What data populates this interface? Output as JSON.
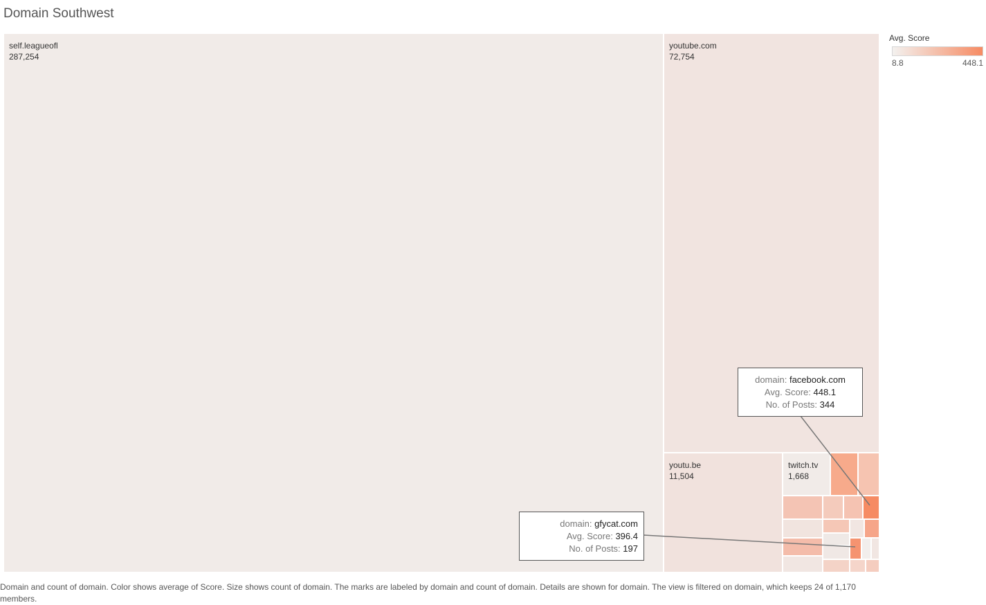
{
  "title": "Domain Southwest",
  "legend": {
    "title": "Avg. Score",
    "min_label": "8.8",
    "max_label": "448.1",
    "color_low": "#f3f1ef",
    "color_high": "#f68b63"
  },
  "callouts": {
    "facebook": {
      "domain_key": "domain:",
      "domain_val": "facebook.com",
      "score_key": "Avg. Score:",
      "score_val": "448.1",
      "posts_key": "No. of Posts:",
      "posts_val": "344"
    },
    "gfycat": {
      "domain_key": "domain:",
      "domain_val": "gfycat.com",
      "score_key": "Avg. Score:",
      "score_val": "396.4",
      "posts_key": "No. of Posts:",
      "posts_val": "197"
    }
  },
  "caption": "Domain and count of domain.  Color shows average of Score.  Size shows count of domain.  The marks are labeled by domain and count of domain.  Details are shown for domain. The view is filtered on domain, which keeps 24 of 1,170 members.",
  "chart_data": {
    "type": "treemap",
    "title": "Domain Southwest",
    "size_measure": "count of domain",
    "color_measure": "Avg. Score",
    "color_range": [
      8.8,
      448.1
    ],
    "items": [
      {
        "domain": "self.leagueofl",
        "count": 287254,
        "count_label": "287,254"
      },
      {
        "domain": "youtube.com",
        "count": 72754,
        "count_label": "72,754"
      },
      {
        "domain": "youtu.be",
        "count": 11504,
        "count_label": "11,504"
      },
      {
        "domain": "twitch.tv",
        "count": 1668,
        "count_label": "1,668"
      },
      {
        "domain": "facebook.com",
        "count": 344,
        "avg_score": 448.1
      },
      {
        "domain": "gfycat.com",
        "count": 197,
        "avg_score": 396.4
      }
    ]
  }
}
